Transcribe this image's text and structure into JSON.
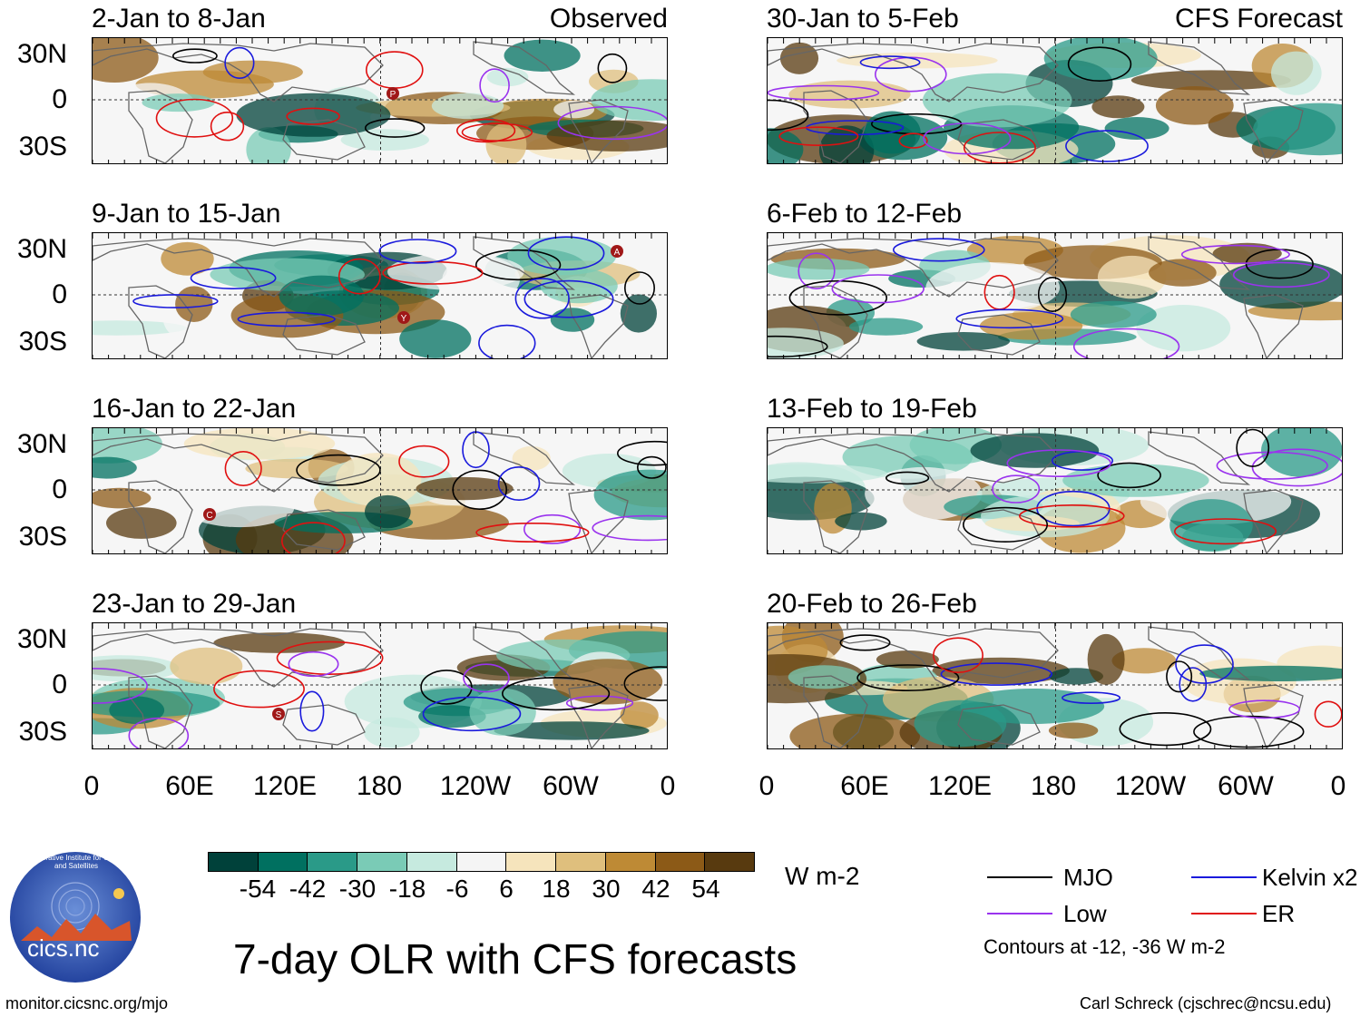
{
  "figure": {
    "title": "7-day OLR with CFS forecasts",
    "credit": "Carl Schreck (cjschrec@ncsu.edu)",
    "url": "monitor.cicsnc.org/mjo",
    "logo_text": "cics.nc",
    "logo_ring_text": "Cooperative Institute for Climate and Satellites"
  },
  "observed_tag": "Observed",
  "forecast_tag": "CFS Forecast",
  "panels": {
    "observed": [
      "2-Jan to 8-Jan",
      "9-Jan to 15-Jan",
      "16-Jan to 22-Jan",
      "23-Jan to 29-Jan"
    ],
    "forecast": [
      "30-Jan to 5-Feb",
      "6-Feb to 12-Feb",
      "13-Feb to 19-Feb",
      "20-Feb to 26-Feb"
    ]
  },
  "lat_labels": [
    "30N",
    "0",
    "30S"
  ],
  "lon_labels": [
    "0",
    "60E",
    "120E",
    "180",
    "120W",
    "60W",
    "0"
  ],
  "colorbar": {
    "unit": "W m-2",
    "ticks": [
      "-54",
      "-42",
      "-30",
      "-18",
      "-6",
      "6",
      "18",
      "30",
      "42",
      "54"
    ],
    "colors": [
      "#00413a",
      "#007060",
      "#2a9a88",
      "#7acbb6",
      "#c6eadf",
      "#f5f5f5",
      "#f6e4bc",
      "#dfbf7d",
      "#be8a35",
      "#8c5a17",
      "#583a0f"
    ]
  },
  "legend": {
    "items": [
      {
        "label": "MJO",
        "color": "#000000"
      },
      {
        "label": "Kelvin x2",
        "color": "#1a1adc"
      },
      {
        "label": "Low",
        "color": "#9a33ee"
      },
      {
        "label": "ER",
        "color": "#e01010"
      }
    ],
    "note": "Contours at -12, -36 W m-2"
  },
  "markers": {
    "obs1": "P",
    "obs2a": "Y",
    "obs2b": "A",
    "obs3": "C",
    "obs4": "S"
  }
}
